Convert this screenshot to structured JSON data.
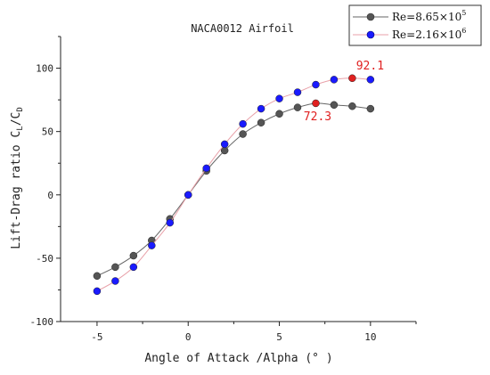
{
  "chart_data": {
    "type": "line",
    "title": "NACA0012 Airfoil",
    "xlabel": "Angle of Attack /Alpha (° )",
    "ylabel_parts": {
      "main": "Lift-Drag ratio C",
      "sub1": "L",
      "slash": "/C",
      "sub2": "D"
    },
    "xlim": [
      -7,
      12.5
    ],
    "ylim": [
      -100,
      125
    ],
    "xticks": [
      -5,
      0,
      5,
      10
    ],
    "yticks": [
      -100,
      -50,
      0,
      50,
      100
    ],
    "grid": false,
    "legend_position": "top-right",
    "x": [
      -5,
      -4,
      -3,
      -2,
      -1,
      0,
      1,
      2,
      3,
      4,
      5,
      6,
      7,
      8,
      9,
      10
    ],
    "series": [
      {
        "legend_prefix": "Re=8.65×10",
        "legend_sup": "5",
        "marker_color": "#555555",
        "line_color": "#666666",
        "values": [
          -64,
          -57,
          -48,
          -36,
          -19,
          0,
          19,
          35,
          48,
          57,
          64,
          69,
          72.3,
          71,
          70,
          68
        ]
      },
      {
        "legend_prefix": "Re=2.16×10",
        "legend_sup": "6",
        "marker_color": "#1a1aff",
        "line_color": "#e8a0a8",
        "values": [
          -76,
          -68,
          -57,
          -40,
          -22,
          0,
          21,
          40,
          56,
          68,
          76,
          81,
          87,
          91,
          92.1,
          91
        ]
      }
    ],
    "annotations": [
      {
        "text": "92.1",
        "x": 9,
        "y": 92.1,
        "series": 1,
        "color": "#e02020"
      },
      {
        "text": "72.3",
        "x": 7,
        "y": 72.3,
        "series": 0,
        "color": "#e02020"
      }
    ]
  }
}
